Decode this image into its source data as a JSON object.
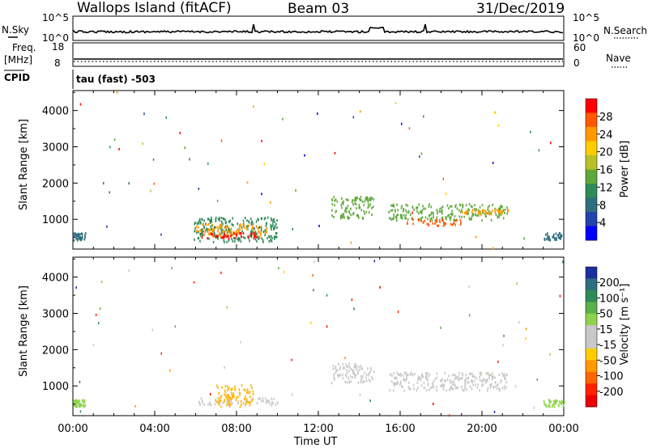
{
  "header": {
    "station": "Wallops Island (fitACF)",
    "beam": "Beam 03",
    "date": "31/Dec/2019"
  },
  "nsky_panel": {
    "left_label": "N.Sky",
    "left_ticks": [
      "10^5",
      "10^0"
    ],
    "right_ticks": [
      "10^5",
      "10^0"
    ],
    "right_label": "N.Search"
  },
  "freq_panel": {
    "left_label_1": "Freq.",
    "left_label_2": "[MHz]",
    "left_ticks": [
      "18",
      "8"
    ],
    "right_ticks": [
      "60",
      "0"
    ],
    "right_label": "Nave"
  },
  "cpid": {
    "label": "CPID",
    "value": "tau (fast) -503"
  },
  "chart_data": [
    {
      "type": "heatmap",
      "name": "Power",
      "ylabel": "Slant Range [km]",
      "ylim": [
        180,
        4550
      ],
      "yticks": [
        1000,
        2000,
        3000,
        4000
      ],
      "ytick_labels": [
        "1000",
        "2000",
        "3000",
        "4000"
      ],
      "xlim": [
        0,
        24
      ],
      "x_tick_labels": [
        "00:00",
        "04:00",
        "08:00",
        "12:00",
        "16:00",
        "20:00",
        "00:00"
      ],
      "colorbar": {
        "label": "Power [dB]",
        "ticks": [
          "28",
          "24",
          "20",
          "16",
          "12",
          "8",
          "4"
        ],
        "colors": [
          "#ff0000",
          "#ff5a00",
          "#ff9900",
          "#ffcc00",
          "#b9c12a",
          "#5ea83a",
          "#2e8b57",
          "#2f6e7e",
          "#2244aa",
          "#0000ff"
        ]
      },
      "regions": [
        {
          "x0": 5.9,
          "x1": 10.0,
          "y0": 400,
          "y1": 1100,
          "color": "#2e8b57"
        },
        {
          "x0": 6.0,
          "x1": 9.5,
          "y0": 550,
          "y1": 900,
          "color": "#ff9900"
        },
        {
          "x0": 6.2,
          "x1": 9.0,
          "y0": 500,
          "y1": 650,
          "color": "#ff0000"
        },
        {
          "x0": 12.6,
          "x1": 14.7,
          "y0": 1050,
          "y1": 1650,
          "color": "#5ea83a"
        },
        {
          "x0": 15.4,
          "x1": 21.2,
          "y0": 1000,
          "y1": 1450,
          "color": "#5ea83a"
        },
        {
          "x0": 16.3,
          "x1": 19.0,
          "y0": 850,
          "y1": 1050,
          "color": "#ff5a00"
        },
        {
          "x0": 19.0,
          "x1": 21.3,
          "y0": 1150,
          "y1": 1300,
          "color": "#ff9900"
        },
        {
          "x0": 0.0,
          "x1": 0.6,
          "y0": 450,
          "y1": 650,
          "color": "#2f6e7e"
        },
        {
          "x0": 23.0,
          "x1": 24.0,
          "y0": 450,
          "y1": 650,
          "color": "#2f6e7e"
        }
      ]
    },
    {
      "type": "heatmap",
      "name": "Velocity",
      "ylabel": "Slant Range [km]",
      "ylim": [
        180,
        4550
      ],
      "yticks": [
        1000,
        2000,
        3000,
        4000
      ],
      "ytick_labels": [
        "1000",
        "2000",
        "3000",
        "4000"
      ],
      "xlim": [
        0,
        24
      ],
      "x_tick_labels": [
        "00:00",
        "04:00",
        "08:00",
        "12:00",
        "16:00",
        "20:00",
        "00:00"
      ],
      "xlabel": "Time UT",
      "colorbar": {
        "label": "Velocity [m s⁻¹]",
        "ticks": [
          "200",
          "100",
          "50",
          "15",
          "-15",
          "-50",
          "-100",
          "-200"
        ],
        "colors": [
          "#1c2fa0",
          "#2e6e7e",
          "#2e8b57",
          "#5ab04a",
          "#8fd24a",
          "#c8c8c8",
          "#c8c8c8",
          "#ffcc00",
          "#ff9900",
          "#ff6600",
          "#ff2200",
          "#ee0000"
        ]
      },
      "regions": [
        {
          "x0": 6.0,
          "x1": 10.0,
          "y0": 500,
          "y1": 700,
          "color": "#c8c8c8"
        },
        {
          "x0": 7.0,
          "x1": 8.8,
          "y0": 450,
          "y1": 1050,
          "color": "#ffb400"
        },
        {
          "x0": 12.6,
          "x1": 14.7,
          "y0": 1100,
          "y1": 1650,
          "color": "#c8c8c8"
        },
        {
          "x0": 15.4,
          "x1": 21.2,
          "y0": 900,
          "y1": 1400,
          "color": "#c8c8c8"
        },
        {
          "x0": 0.0,
          "x1": 0.6,
          "y0": 450,
          "y1": 650,
          "color": "#8fd24a"
        },
        {
          "x0": 23.0,
          "x1": 24.0,
          "y0": 450,
          "y1": 650,
          "color": "#8fd24a"
        }
      ]
    }
  ]
}
